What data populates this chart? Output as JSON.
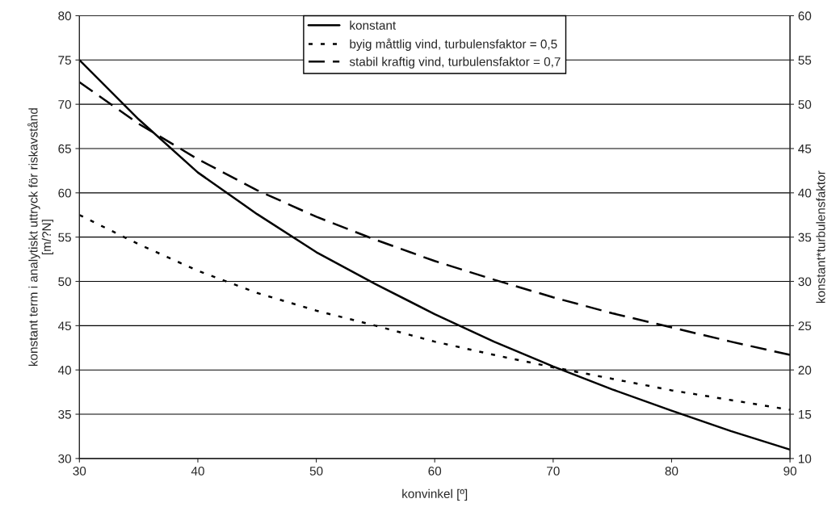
{
  "chart_data": {
    "type": "line",
    "xlabel": "konvinkel [º]",
    "ylabel": "konstant term i analytiskt uttryck för riskavstånd\n[m/?N]",
    "y2label": "konstant*turbulensfaktor",
    "x": [
      30,
      35,
      40,
      45,
      50,
      55,
      60,
      65,
      70,
      75,
      80,
      85,
      90
    ],
    "series": [
      {
        "name": "konstant",
        "color": "#000000",
        "line_style": "solid",
        "values": [
          75,
          68.3,
          62.3,
          57.6,
          53.3,
          49.7,
          46.3,
          43.2,
          40.4,
          37.8,
          35.4,
          33.1,
          31
        ]
      },
      {
        "name": "byig måttlig vind, turbulensfaktor = 0,5",
        "color": "#000000",
        "line_style": "dotted",
        "axis": "y2",
        "values": [
          37.5,
          34.2,
          31.2,
          28.7,
          26.7,
          25,
          23.2,
          21.7,
          20.3,
          19,
          17.7,
          16.6,
          15.5
        ]
      },
      {
        "name": "stabil kraftig vind, turbulensfaktor = 0,7",
        "color": "#000000",
        "line_style": "dashed",
        "axis": "y2",
        "values": [
          52.5,
          47.8,
          43.8,
          40.3,
          37.3,
          34.7,
          32.3,
          30.2,
          28.2,
          26.4,
          24.8,
          23.2,
          21.7
        ]
      }
    ],
    "xlim": [
      30,
      90
    ],
    "xticks": [
      30,
      40,
      50,
      60,
      70,
      80,
      90
    ],
    "ylim": [
      30,
      80
    ],
    "yticks": [
      30,
      35,
      40,
      45,
      50,
      55,
      60,
      65,
      70,
      75,
      80
    ],
    "y2lim": [
      10,
      60
    ],
    "y2ticks": [
      10,
      15,
      20,
      25,
      30,
      35,
      40,
      45,
      50,
      55,
      60
    ],
    "grid": "y",
    "legend": "top",
    "marker": "none"
  }
}
